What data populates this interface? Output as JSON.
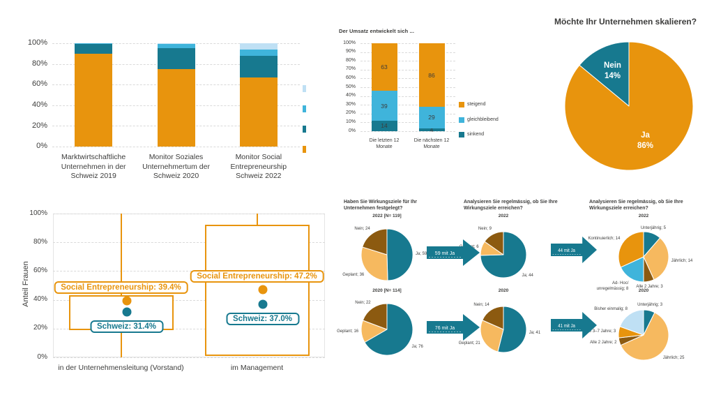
{
  "page": {
    "background": "#ffffff"
  },
  "colors": {
    "orange": "#E8940D",
    "teal": "#17798F",
    "light_blue": "#3FB4DB",
    "pale_blue": "#BFE0F4",
    "brown": "#8C5A10",
    "tan": "#F6B95F",
    "text_dark": "#3C3C3B",
    "grid": "#D9D9D9",
    "arrow": "#17798F"
  },
  "chart_data": [
    {
      "id": "monitor_stacked",
      "type": "bar",
      "stacked": true,
      "title": "",
      "categories": [
        "Marktwirtschaftliche Unternehmen in der Schweiz 2019",
        "Monitor Soziales Unternehmertum der Schweiz 2020",
        "Monitor Social Entrepreneurship Schweiz 2022"
      ],
      "series": [
        {
          "name": "segment-1",
          "color": "orange",
          "values": [
            90,
            75,
            67
          ]
        },
        {
          "name": "segment-2",
          "color": "teal",
          "values": [
            9,
            20,
            21
          ]
        },
        {
          "name": "segment-3",
          "color": "light_blue",
          "values": [
            1,
            4,
            6
          ]
        },
        {
          "name": "segment-4",
          "color": "pale_blue",
          "values": [
            0,
            1,
            6
          ]
        }
      ],
      "ylim": [
        0,
        100
      ],
      "yticks": [
        "0%",
        "20%",
        "40%",
        "60%",
        "80%",
        "100%"
      ],
      "grid": true,
      "legend_swatches_cut_off": [
        "pale_blue",
        "light_blue",
        "teal",
        "orange"
      ]
    },
    {
      "id": "umsatz",
      "type": "bar",
      "stacked": true,
      "title": "Der Umsatz entwickelt sich ...",
      "categories": [
        "Die letzten 12 Monate",
        "Die nächsten 12 Monate"
      ],
      "series": [
        {
          "name": "sinkend",
          "color": "teal",
          "values": [
            14,
            4
          ]
        },
        {
          "name": "gleichbleibend",
          "color": "light_blue",
          "values": [
            39,
            29
          ]
        },
        {
          "name": "steigend",
          "color": "orange",
          "values": [
            63,
            86
          ]
        }
      ],
      "show_values": true,
      "ylim": [
        0,
        100
      ],
      "yticks": [
        "0%",
        "10%",
        "20%",
        "30%",
        "40%",
        "50%",
        "60%",
        "70%",
        "80%",
        "90%",
        "100%"
      ],
      "grid": true,
      "legend": [
        {
          "label": "steigend",
          "color": "orange"
        },
        {
          "label": "gleichbleibend",
          "color": "light_blue"
        },
        {
          "label": "sinkend",
          "color": "teal"
        }
      ],
      "legend_position": "right"
    },
    {
      "id": "skalieren",
      "type": "pie",
      "title": "Möchte Ihr Unternehmen skalieren?",
      "slices": [
        {
          "label": "Ja\n86%",
          "value": 86,
          "color": "orange"
        },
        {
          "label": "Nein\n14%",
          "value": 14,
          "color": "teal"
        }
      ],
      "labels_inside": true
    },
    {
      "id": "anteil_frauen",
      "type": "boxplot",
      "ylabel": "Anteil Frauen",
      "ylim": [
        0,
        100
      ],
      "yticks": [
        "0%",
        "20%",
        "40%",
        "60%",
        "80%",
        "100%"
      ],
      "grid": true,
      "categories": [
        "in der Unternehmensleitung (Vorstand)",
        "im Management"
      ],
      "boxes": [
        {
          "q1": 19,
          "q3": 43,
          "whisker_low": 0,
          "whisker_high": 100,
          "points": [
            {
              "label": "Social Entrepreneurship: 39.4%",
              "value": 39.4,
              "color": "orange"
            },
            {
              "label": "Schweiz: 31.4%",
              "value": 31.4,
              "color": "teal"
            }
          ]
        },
        {
          "q1": 1,
          "q3": 92,
          "whisker_low": 1,
          "whisker_high": 100,
          "points": [
            {
              "label": "Social Entrepreneurship: 47.2%",
              "value": 47.2,
              "color": "orange"
            },
            {
              "label": "Schweiz: 37.0%",
              "value": 37.0,
              "color": "teal"
            }
          ]
        }
      ]
    },
    {
      "id": "wirkungsziele_flow",
      "type": "pie-flow",
      "column_titles": [
        "Haben Sie Wirkungsziele für Ihr Unternehmen festgelegt?",
        "Analysieren Sie regelmässig, ob Sie Ihre Wirkungsziele erreichen?",
        "Analysieren Sie regelmässig, ob Sie Ihre Wirkungsziele erreichen?"
      ],
      "rows": [
        {
          "pies": [
            {
              "subtitle": "2022 [N= 119]",
              "slices": [
                {
                  "label": "Ja; 59",
                  "value": 59,
                  "color": "teal"
                },
                {
                  "label": "Geplant; 36",
                  "value": 36,
                  "color": "tan"
                },
                {
                  "label": "Nein; 24",
                  "value": 24,
                  "color": "brown"
                }
              ]
            },
            {
              "subtitle": "2022",
              "slices": [
                {
                  "label": "Ja; 44",
                  "value": 44,
                  "color": "teal"
                },
                {
                  "label": "Geplant; 6",
                  "value": 6,
                  "color": "tan"
                },
                {
                  "label": "Nein; 9",
                  "value": 9,
                  "color": "brown"
                }
              ]
            },
            {
              "subtitle": "2022",
              "slices": [
                {
                  "label": "Unterjährig; 5",
                  "value": 5,
                  "color": "teal"
                },
                {
                  "label": "Jährlich; 14",
                  "value": 14,
                  "color": "tan"
                },
                {
                  "label": "Alle 2 Jahre; 3",
                  "value": 3,
                  "color": "brown"
                },
                {
                  "label": "Ad- Hoc/ unregelmässig; 8",
                  "value": 8,
                  "color": "light_blue"
                },
                {
                  "label": "Kontinuierlich; 14",
                  "value": 14,
                  "color": "orange"
                }
              ]
            }
          ],
          "arrows": [
            "59 mit Ja",
            "44 mit Ja"
          ]
        },
        {
          "pies": [
            {
              "subtitle": "2020 [N= 114]",
              "slices": [
                {
                  "label": "Ja; 76",
                  "value": 76,
                  "color": "teal"
                },
                {
                  "label": "Geplant; 16",
                  "value": 16,
                  "color": "tan"
                },
                {
                  "label": "Nein; 22",
                  "value": 22,
                  "color": "brown"
                }
              ]
            },
            {
              "subtitle": "2020",
              "slices": [
                {
                  "label": "Ja; 41",
                  "value": 41,
                  "color": "teal"
                },
                {
                  "label": "Geplant; 21",
                  "value": 21,
                  "color": "tan"
                },
                {
                  "label": "Nein; 14",
                  "value": 14,
                  "color": "brown"
                }
              ]
            },
            {
              "subtitle": "2020",
              "slices": [
                {
                  "label": "Unterjährig; 3",
                  "value": 3,
                  "color": "teal"
                },
                {
                  "label": "Jährlich; 25",
                  "value": 25,
                  "color": "tan"
                },
                {
                  "label": "Alle 2 Jahre; 2",
                  "value": 2,
                  "color": "brown"
                },
                {
                  "label": "Alle 3–7 Jahre; 3",
                  "value": 3,
                  "color": "orange"
                },
                {
                  "label": "Bisher einmalig; 8",
                  "value": 8,
                  "color": "pale_blue"
                }
              ]
            }
          ],
          "arrows": [
            "76 mit Ja",
            "41 mit Ja"
          ]
        }
      ]
    }
  ]
}
